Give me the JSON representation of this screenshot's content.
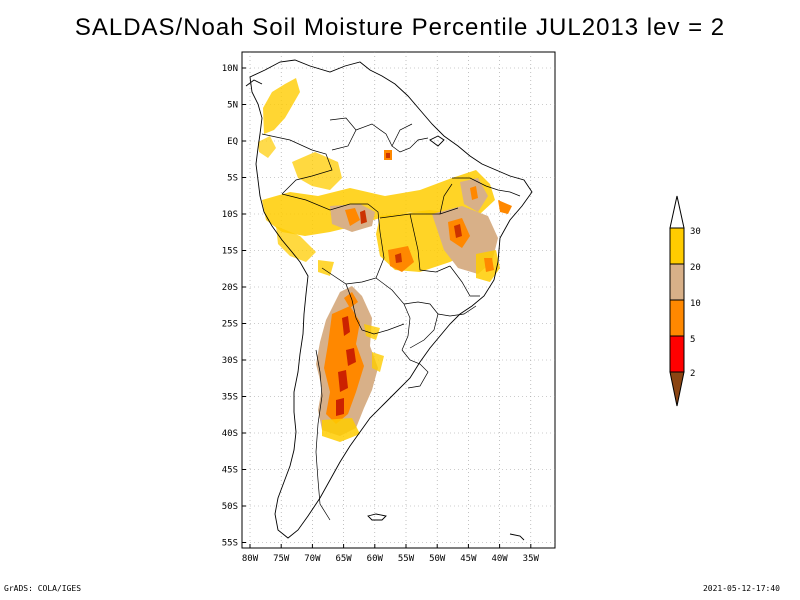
{
  "title": "SALDAS/Noah Soil Moisture Percentile JUL2013 lev = 2",
  "map": {
    "lat_labels": [
      "10N",
      "5N",
      "EQ",
      "5S",
      "10S",
      "15S",
      "20S",
      "25S",
      "30S",
      "35S",
      "40S",
      "45S",
      "50S",
      "55S"
    ],
    "lon_labels": [
      "80W",
      "75W",
      "70W",
      "65W",
      "60W",
      "55W",
      "50W",
      "45W",
      "40W",
      "35W"
    ],
    "lat_range": [
      10,
      -56
    ],
    "lon_range": [
      -81,
      -34
    ],
    "grid": "dotted"
  },
  "legend": {
    "classes": [
      {
        "label": "30",
        "color": "#ffffff"
      },
      {
        "label": "20",
        "color": "#ffcc00"
      },
      {
        "label": "10",
        "color": "#d8b088"
      },
      {
        "label": "5",
        "color": "#ff8800"
      },
      {
        "label": "2",
        "color": "#ff0000"
      },
      {
        "label": "",
        "color": "#8b4513"
      }
    ]
  },
  "footer": {
    "left": "GrADS: COLA/IGES",
    "right": "2021-05-12-17:40"
  }
}
